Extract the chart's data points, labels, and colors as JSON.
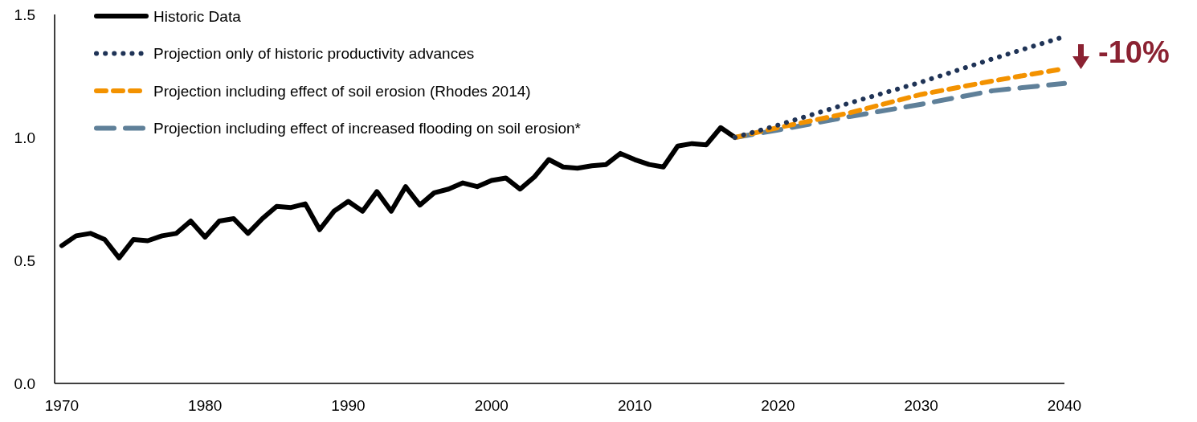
{
  "chart_data": {
    "type": "line",
    "xlim": [
      1969.5,
      2040
    ],
    "xticks": [
      1970,
      1980,
      1990,
      2000,
      2010,
      2020,
      2030,
      2040
    ],
    "ylim": [
      0,
      1.5
    ],
    "yticks": [
      {
        "value": 0,
        "label": "0.0"
      },
      {
        "value": 0.5,
        "label": "0.5"
      },
      {
        "value": 1,
        "label": "1.0"
      },
      1.5
    ],
    "grid": false,
    "legend": "top left",
    "marker": "none",
    "annotations": [
      "-10%"
    ],
    "series": [
      {
        "name": "Historic Data",
        "color": "#000000",
        "line_style": "solid",
        "x": [
          1970,
          1971,
          1972,
          1973,
          1974,
          1975,
          1976,
          1977,
          1978,
          1979,
          1980,
          1981,
          1982,
          1983,
          1984,
          1985,
          1986,
          1987,
          1988,
          1989,
          1990,
          1991,
          1992,
          1993,
          1994,
          1995,
          1996,
          1997,
          1998,
          1999,
          2000,
          2001,
          2002,
          2003,
          2004,
          2005,
          2006,
          2007,
          2008,
          2009,
          2010,
          2011,
          2012,
          2013,
          2014,
          2015,
          2016,
          2017
        ],
        "values": [
          0.56,
          0.6,
          0.61,
          0.585,
          0.51,
          0.585,
          0.58,
          0.6,
          0.61,
          0.66,
          0.595,
          0.66,
          0.67,
          0.61,
          0.67,
          0.72,
          0.715,
          0.73,
          0.625,
          0.7,
          0.74,
          0.7,
          0.78,
          0.7,
          0.8,
          0.725,
          0.775,
          0.79,
          0.815,
          0.8,
          0.825,
          0.835,
          0.79,
          0.84,
          0.91,
          0.88,
          0.875,
          0.885,
          0.89,
          0.935,
          0.91,
          0.89,
          0.88,
          0.965,
          0.975,
          0.97,
          1.04,
          1.0
        ]
      },
      {
        "name": "Projection only of historic productivity advances",
        "color": "#1f3356",
        "line_style": "dotted",
        "x": [
          2017,
          2020,
          2025,
          2030,
          2035,
          2040
        ],
        "values": [
          1.0,
          1.05,
          1.14,
          1.225,
          1.32,
          1.41
        ]
      },
      {
        "name": "Projection including effect of soil erosion (Rhodes 2014)",
        "color": "#f39200",
        "line_style": "dashed",
        "x": [
          2017,
          2020,
          2025,
          2030,
          2035,
          2040
        ],
        "values": [
          1.0,
          1.04,
          1.1,
          1.175,
          1.23,
          1.28
        ]
      },
      {
        "name": "Projection including effect of increased flooding on soil erosion*",
        "color": "#5f8099",
        "line_style": "dashed",
        "x": [
          2017,
          2020,
          2025,
          2030,
          2035,
          2040
        ],
        "values": [
          1.0,
          1.03,
          1.085,
          1.135,
          1.19,
          1.22
        ]
      }
    ]
  }
}
